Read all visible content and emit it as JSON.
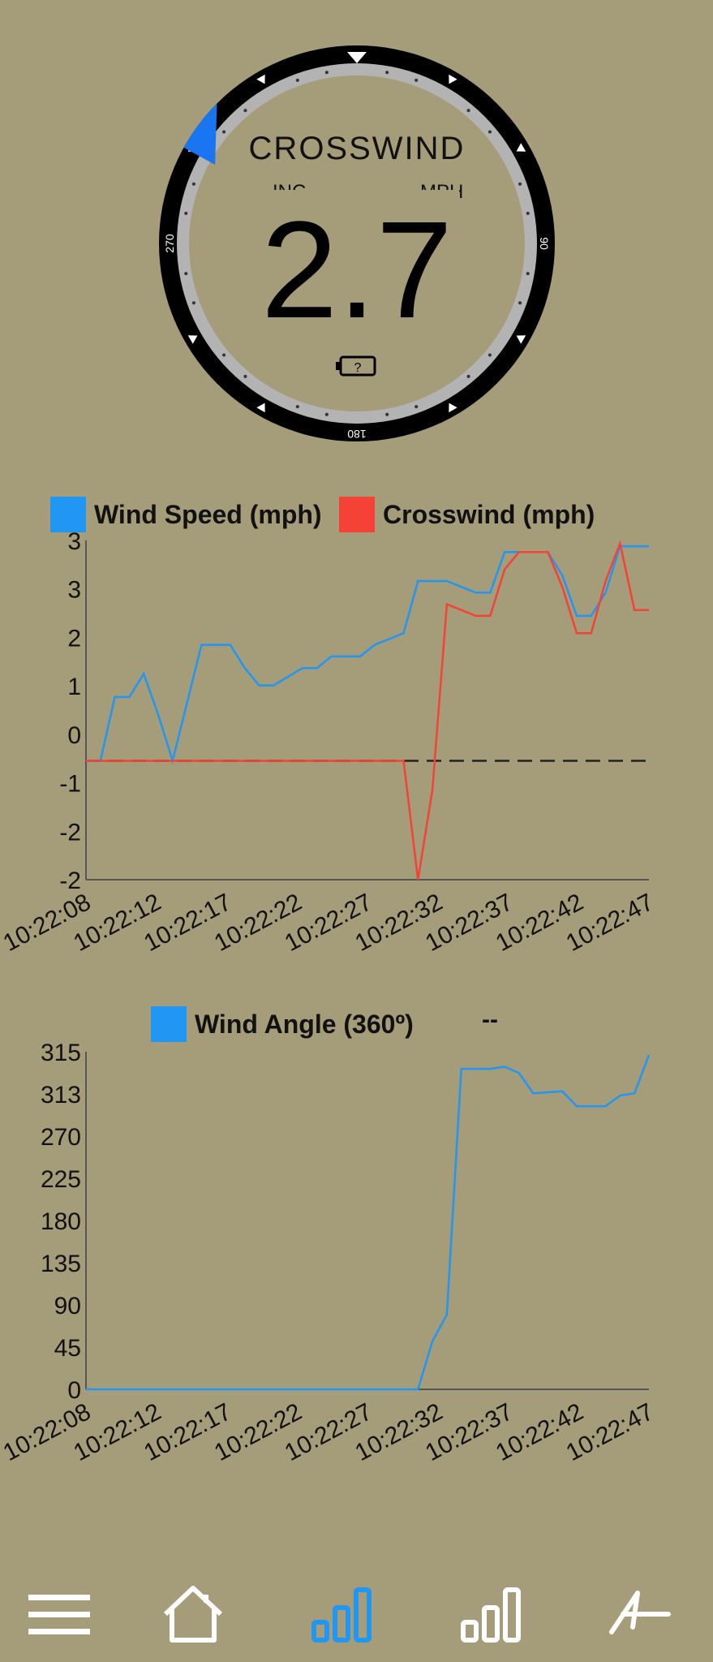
{
  "gauge": {
    "title": "CROSSWIND",
    "unit_left": "INC",
    "unit_right": "MPH",
    "value": "2.7",
    "battery": "?",
    "bearing_labels": [
      "90",
      "180",
      "270"
    ],
    "wind_indicator_deg": 307
  },
  "chart1": {
    "legend": [
      {
        "name": "Wind Speed (mph)",
        "color": "#2196f3"
      },
      {
        "name": "Crosswind (mph)",
        "color": "#f44336"
      }
    ]
  },
  "chart2": {
    "legend": [
      {
        "name": "Wind Angle (360º)",
        "color": "#2196f3"
      }
    ],
    "current_value": "--"
  },
  "chart_data": [
    {
      "type": "line",
      "x": [
        "10:22:08",
        "10:22:09",
        "10:22:10",
        "10:22:11",
        "10:22:12",
        "10:22:13",
        "10:22:14",
        "10:22:15",
        "10:22:16",
        "10:22:17",
        "10:22:18",
        "10:22:19",
        "10:22:20",
        "10:22:21",
        "10:22:22",
        "10:22:23",
        "10:22:24",
        "10:22:25",
        "10:22:26",
        "10:22:27",
        "10:22:28",
        "10:22:29",
        "10:22:30",
        "10:22:31",
        "10:22:32",
        "10:22:33",
        "10:22:34",
        "10:22:35",
        "10:22:36",
        "10:22:37",
        "10:22:38",
        "10:22:39",
        "10:22:40",
        "10:22:41",
        "10:22:42",
        "10:22:43",
        "10:22:44",
        "10:22:45",
        "10:22:46",
        "10:22:47"
      ],
      "x_tick_labels": [
        "10:22:08",
        "10:22:12",
        "10:22:17",
        "10:22:22",
        "10:22:27",
        "10:22:32",
        "10:22:37",
        "10:22:42",
        "10:22:47"
      ],
      "y_tick_labels": [
        "-2",
        "-2",
        "-1",
        "0",
        "1",
        "2",
        "3",
        "3"
      ],
      "ylim": [
        -2.05,
        3.8
      ],
      "series": [
        {
          "name": "Wind Speed (mph)",
          "color": "#2196f3",
          "values": [
            0,
            0,
            1.1,
            1.1,
            1.5,
            0.8,
            0,
            1,
            2,
            2,
            2,
            1.6,
            1.3,
            1.3,
            1.45,
            1.6,
            1.6,
            1.8,
            1.8,
            1.8,
            2,
            2.1,
            2.2,
            3.1,
            3.1,
            3.1,
            3,
            2.9,
            2.9,
            3.6,
            3.6,
            3.6,
            3.6,
            3.2,
            2.5,
            2.5,
            2.9,
            3.7,
            3.7,
            3.7
          ]
        },
        {
          "name": "Crosswind (mph)",
          "color": "#f44336",
          "values": [
            0,
            0,
            0,
            0,
            0,
            0,
            0,
            0,
            0,
            0,
            0,
            0,
            0,
            0,
            0,
            0,
            0,
            0,
            0,
            0,
            0,
            0,
            0,
            -2.05,
            -0.5,
            2.7,
            2.6,
            2.5,
            2.5,
            3.3,
            3.6,
            3.6,
            3.6,
            3,
            2.2,
            2.2,
            3.1,
            3.75,
            2.6,
            2.6
          ]
        }
      ],
      "reference_line": 0
    },
    {
      "type": "line",
      "x": [
        "10:22:08",
        "10:22:09",
        "10:22:10",
        "10:22:11",
        "10:22:12",
        "10:22:13",
        "10:22:14",
        "10:22:15",
        "10:22:16",
        "10:22:17",
        "10:22:18",
        "10:22:19",
        "10:22:20",
        "10:22:21",
        "10:22:22",
        "10:22:23",
        "10:22:24",
        "10:22:25",
        "10:22:26",
        "10:22:27",
        "10:22:28",
        "10:22:29",
        "10:22:30",
        "10:22:31",
        "10:22:32",
        "10:22:33",
        "10:22:34",
        "10:22:35",
        "10:22:36",
        "10:22:37",
        "10:22:38",
        "10:22:39",
        "10:22:40",
        "10:22:41",
        "10:22:42",
        "10:22:43",
        "10:22:44",
        "10:22:45",
        "10:22:46",
        "10:22:47"
      ],
      "x_tick_labels": [
        "10:22:08",
        "10:22:12",
        "10:22:17",
        "10:22:22",
        "10:22:27",
        "10:22:32",
        "10:22:37",
        "10:22:42",
        "10:22:47"
      ],
      "y_tick_labels": [
        "0",
        "45",
        "90",
        "135",
        "180",
        "225",
        "270",
        "313",
        "315"
      ],
      "ylim": [
        0,
        316
      ],
      "series": [
        {
          "name": "Wind Angle (360º)",
          "color": "#2196f3",
          "values": [
            0,
            0,
            0,
            0,
            0,
            0,
            0,
            0,
            0,
            0,
            0,
            0,
            0,
            0,
            0,
            0,
            0,
            0,
            0,
            0,
            0,
            0,
            0,
            0,
            45,
            70,
            300,
            300,
            300,
            302,
            296,
            277,
            278,
            279,
            265,
            265,
            265,
            275,
            277,
            313
          ]
        }
      ]
    }
  ],
  "nav": [
    {
      "name": "menu"
    },
    {
      "name": "home"
    },
    {
      "name": "charts-active"
    },
    {
      "name": "charts"
    },
    {
      "name": "logo"
    }
  ]
}
